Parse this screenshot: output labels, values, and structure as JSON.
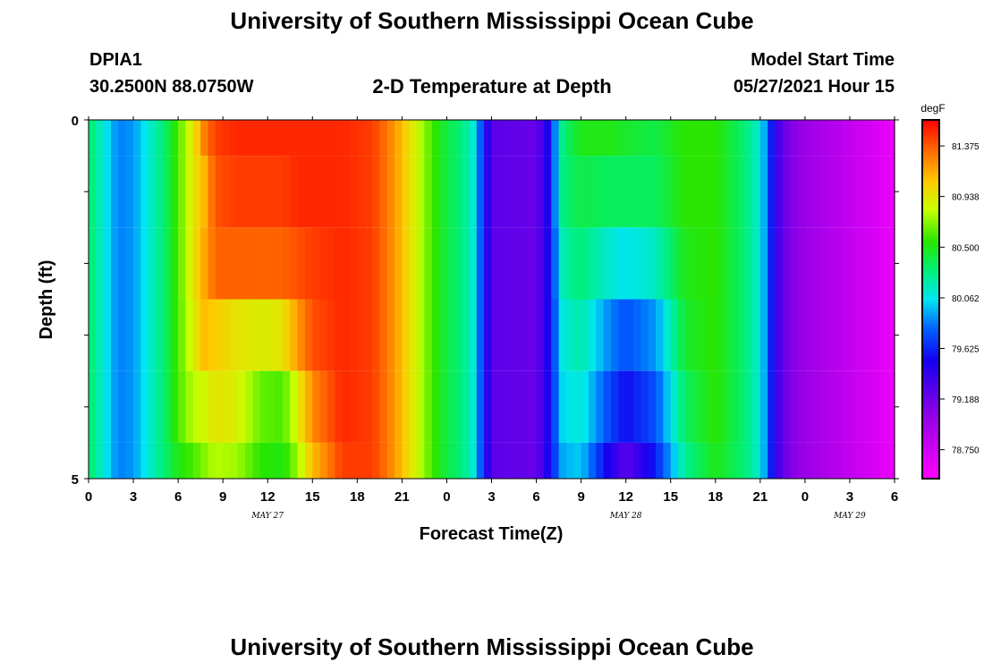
{
  "page": {
    "title_top": "University of Southern Mississippi Ocean Cube",
    "title_bottom": "University of Southern Mississippi Ocean Cube",
    "station_id": "DPIA1",
    "station_coords": "30.2500N  88.0750W",
    "chart_title": "2-D Temperature at Depth",
    "model_start_label": "Model Start Time",
    "model_start_value": "05/27/2021 Hour 15"
  },
  "chart_data": {
    "type": "heatmap",
    "title": "2-D Temperature at Depth",
    "xlabel": "Forecast Time(Z)",
    "ylabel": "Depth (ft)",
    "x_unit": "hours from May 27 00Z",
    "xlim": [
      0,
      54
    ],
    "ylim": [
      0,
      5
    ],
    "y_inverted": true,
    "x_ticks": [
      0,
      3,
      6,
      9,
      12,
      15,
      18,
      21,
      24,
      27,
      30,
      33,
      36,
      39,
      42,
      45,
      48,
      51,
      54
    ],
    "x_tick_labels": [
      "0",
      "3",
      "6",
      "9",
      "12",
      "15",
      "18",
      "21",
      "0",
      "3",
      "6",
      "9",
      "12",
      "15",
      "18",
      "21",
      "0",
      "3",
      "6"
    ],
    "y_ticks": [
      0,
      1,
      2,
      3,
      4,
      5
    ],
    "y_tick_labels": [
      "0",
      "",
      "",
      "",
      "",
      "5"
    ],
    "date_labels": [
      {
        "text": "MAY 27",
        "x": 12
      },
      {
        "text": "MAY 28",
        "x": 36
      },
      {
        "text": "MAY 29",
        "x": 51
      }
    ],
    "colorbar": {
      "unit": "degF",
      "min": 78.5,
      "max": 81.6,
      "tick_labels": [
        "81.375",
        "80.938",
        "80.500",
        "80.062",
        "79.625",
        "79.188",
        "78.750"
      ],
      "tick_values": [
        81.375,
        80.938,
        80.5,
        80.062,
        79.625,
        79.188,
        78.75
      ]
    },
    "depth_layers": [
      "0-0.5",
      "0.5-1.5",
      "1.5-2.5",
      "2.5-3.5",
      "3.5-4.5",
      "4.5-5"
    ],
    "anchor_hours": [
      0,
      1,
      2,
      3,
      4,
      5,
      6,
      7,
      7.7,
      8.5,
      10,
      11.5,
      13,
      14,
      15,
      17,
      19,
      20,
      21,
      22,
      23,
      24,
      25,
      25.8,
      27,
      30,
      30.8,
      31.8,
      33,
      35,
      36,
      38,
      40,
      42,
      44,
      45,
      45.5,
      46,
      47,
      48,
      54
    ],
    "layer_temps": [
      [
        80.35,
        80.1,
        79.85,
        79.9,
        80.1,
        80.3,
        80.6,
        80.95,
        81.25,
        81.45,
        81.5,
        81.5,
        81.5,
        81.5,
        81.5,
        81.5,
        81.45,
        81.3,
        81.1,
        80.85,
        80.6,
        80.4,
        80.3,
        80.1,
        79.25,
        79.2,
        79.5,
        80.3,
        80.5,
        80.5,
        80.45,
        80.4,
        80.55,
        80.55,
        80.3,
        80.1,
        79.8,
        79.4,
        79.1,
        79.0,
        78.6
      ],
      [
        80.35,
        80.1,
        79.85,
        79.9,
        80.1,
        80.3,
        80.6,
        80.95,
        81.1,
        81.4,
        81.45,
        81.45,
        81.45,
        81.5,
        81.5,
        81.5,
        81.45,
        81.3,
        81.1,
        80.85,
        80.6,
        80.4,
        80.3,
        80.1,
        79.25,
        79.2,
        79.5,
        80.3,
        80.4,
        80.35,
        80.35,
        80.35,
        80.55,
        80.55,
        80.3,
        80.1,
        79.8,
        79.4,
        79.1,
        79.0,
        78.6
      ],
      [
        80.35,
        80.1,
        79.85,
        79.9,
        80.1,
        80.3,
        80.6,
        80.95,
        81.15,
        81.35,
        81.35,
        81.35,
        81.35,
        81.4,
        81.45,
        81.5,
        81.45,
        81.3,
        81.1,
        80.85,
        80.6,
        80.4,
        80.3,
        80.1,
        79.25,
        79.2,
        79.5,
        80.2,
        80.3,
        80.1,
        80.05,
        80.15,
        80.5,
        80.55,
        80.3,
        80.1,
        79.8,
        79.4,
        79.1,
        79.0,
        78.6
      ],
      [
        80.35,
        80.1,
        79.85,
        79.9,
        80.1,
        80.3,
        80.6,
        80.9,
        81.1,
        81.05,
        80.95,
        80.9,
        80.95,
        81.2,
        81.4,
        81.5,
        81.45,
        81.3,
        81.1,
        80.85,
        80.6,
        80.4,
        80.3,
        80.1,
        79.25,
        79.2,
        79.5,
        80.1,
        80.2,
        79.85,
        79.75,
        79.9,
        80.45,
        80.55,
        80.3,
        80.1,
        79.8,
        79.4,
        79.1,
        79.0,
        78.6
      ],
      [
        80.35,
        80.1,
        79.85,
        79.9,
        80.1,
        80.3,
        80.6,
        80.8,
        80.85,
        80.95,
        80.9,
        80.65,
        80.6,
        80.9,
        81.25,
        81.5,
        81.45,
        81.3,
        81.1,
        80.85,
        80.6,
        80.4,
        80.3,
        80.1,
        79.25,
        79.2,
        79.5,
        80.05,
        80.1,
        79.7,
        79.55,
        79.75,
        80.35,
        80.55,
        80.3,
        80.1,
        79.8,
        79.4,
        79.1,
        79.0,
        78.6
      ],
      [
        80.35,
        80.1,
        79.85,
        79.9,
        80.1,
        80.3,
        80.5,
        80.6,
        80.7,
        80.8,
        80.75,
        80.55,
        80.5,
        80.75,
        81.1,
        81.45,
        81.45,
        81.3,
        81.1,
        80.85,
        80.6,
        80.4,
        80.3,
        80.1,
        79.25,
        79.2,
        79.5,
        79.95,
        80.0,
        79.45,
        79.25,
        79.6,
        80.25,
        80.5,
        80.3,
        80.1,
        79.8,
        79.4,
        79.1,
        79.0,
        78.6
      ]
    ]
  }
}
